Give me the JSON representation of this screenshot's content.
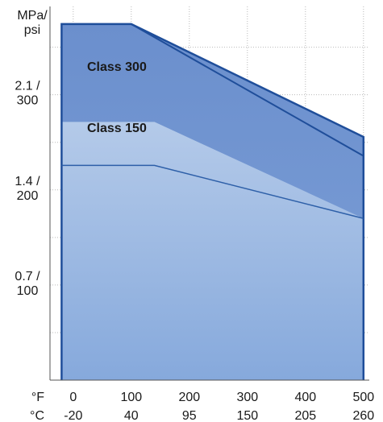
{
  "chart_data": {
    "type": "area",
    "title": "",
    "ylabel": "MPa/\npsi",
    "xlabel_f": "°F",
    "xlabel_c": "°C",
    "x_unit": "°F",
    "xlim": [
      -40,
      510
    ],
    "ylim": [
      0,
      2.75
    ],
    "y_ticks": [
      {
        "value": 2.1,
        "label": "2.1 /\n300"
      },
      {
        "value": 1.4,
        "label": "1.4 /\n200"
      },
      {
        "value": 0.7,
        "label": "0.7 /\n100"
      }
    ],
    "y_grid": [
      0.35,
      0.7,
      1.05,
      1.4,
      1.75,
      2.1,
      2.45
    ],
    "x_ticks": [
      {
        "value": 0,
        "f": "0",
        "c": "-20"
      },
      {
        "value": 100,
        "f": "100",
        "c": "40"
      },
      {
        "value": 200,
        "f": "200",
        "c": "95"
      },
      {
        "value": 300,
        "f": "300",
        "c": "150"
      },
      {
        "value": 400,
        "f": "400",
        "c": "205"
      },
      {
        "value": 500,
        "f": "500",
        "c": "260"
      }
    ],
    "grid": true,
    "series": [
      {
        "name": "Class 300",
        "x": [
          -20,
          100,
          500
        ],
        "y": [
          2.62,
          2.62,
          1.79
        ],
        "color": "#5f86c8"
      },
      {
        "name": "Class 150",
        "x": [
          -20,
          140,
          500
        ],
        "y": [
          1.9,
          1.9,
          1.19
        ],
        "color": "#a9c2e6"
      }
    ],
    "extra_lines": [
      {
        "x": [
          -20,
          100,
          500
        ],
        "y": [
          2.62,
          2.62,
          1.65
        ],
        "color": "#1f4e9a"
      },
      {
        "x": [
          -20,
          140,
          500
        ],
        "y": [
          1.58,
          1.58,
          1.19
        ],
        "color": "#2d5fa8"
      }
    ],
    "outline_color": "#1f4e9a"
  }
}
